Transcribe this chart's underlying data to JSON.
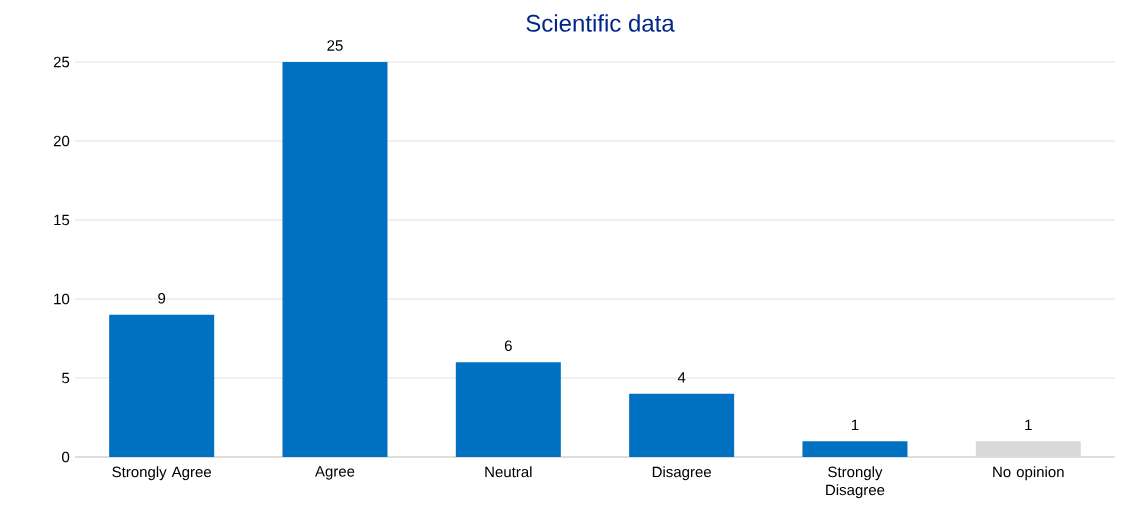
{
  "chart_data": {
    "type": "bar",
    "title": "Scientific data",
    "categories": [
      "Strongly Agree",
      "Agree",
      "Neutral",
      "Disagree",
      "Strongly Disagree",
      "No opinion"
    ],
    "values": [
      9,
      25,
      6,
      4,
      1,
      1
    ],
    "colors": [
      "#0070c0",
      "#0070c0",
      "#0070c0",
      "#0070c0",
      "#0070c0",
      "#d9d9d9"
    ],
    "ylim": [
      0,
      25
    ],
    "yticks": [
      0,
      5,
      10,
      15,
      20,
      25
    ],
    "grid": "y",
    "data_labels": true
  }
}
